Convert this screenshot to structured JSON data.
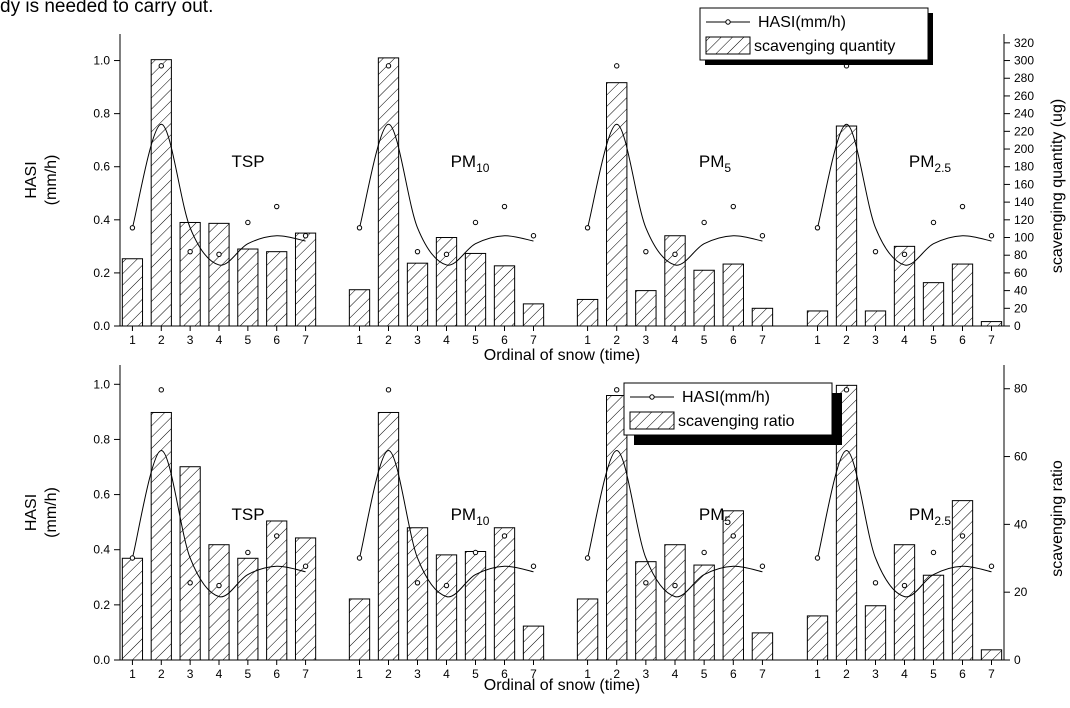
{
  "page_text": "dy is needed to carry out.",
  "chart_data": [
    {
      "type": "bar+line",
      "ylabel_left": [
        "HASI",
        "(mm/h)"
      ],
      "ylabel_right": "scavenging quantity (ug)",
      "xlabel": "Ordinal of snow (time)",
      "left_ylim": [
        0,
        1.1
      ],
      "left_ticks": [
        "0.0",
        "0.2",
        "0.4",
        "0.6",
        "0.8",
        "1.0"
      ],
      "right_ylim": [
        0,
        330
      ],
      "right_ticks": [
        "0",
        "20",
        "40",
        "60",
        "80",
        "100",
        "120",
        "140",
        "160",
        "180",
        "200",
        "220",
        "240",
        "260",
        "280",
        "300",
        "320"
      ],
      "categories": [
        "1",
        "2",
        "3",
        "4",
        "5",
        "6",
        "7"
      ],
      "legend": {
        "line": "HASI(mm/h)",
        "bar": "scavenging quantity"
      },
      "panels": [
        {
          "label": "TSP",
          "sub": "",
          "bar_values": [
            76,
            301,
            117,
            116,
            87,
            84,
            105
          ]
        },
        {
          "label": "PM",
          "sub": "10",
          "bar_values": [
            41,
            303,
            71,
            100,
            82,
            68,
            25
          ]
        },
        {
          "label": "PM",
          "sub": "5",
          "bar_values": [
            30,
            275,
            40,
            102,
            63,
            70,
            20
          ]
        },
        {
          "label": "PM",
          "sub": "2.5",
          "bar_values": [
            17,
            226,
            17,
            90,
            49,
            70,
            5
          ]
        }
      ],
      "hasi_points": [
        0.37,
        0.98,
        0.28,
        0.27,
        0.39,
        0.45,
        0.34
      ],
      "hasi_curve": [
        0.37,
        0.76,
        0.37,
        0.23,
        0.31,
        0.34,
        0.32
      ]
    },
    {
      "type": "bar+line",
      "ylabel_left": [
        "HASI",
        "(mm/h)"
      ],
      "ylabel_right": "scavenging ratio",
      "xlabel": "Ordinal of snow (time)",
      "left_ylim": [
        0,
        1.07
      ],
      "left_ticks": [
        "0.0",
        "0.2",
        "0.4",
        "0.6",
        "0.8",
        "1.0"
      ],
      "right_ylim": [
        0,
        87
      ],
      "right_ticks": [
        "0",
        "20",
        "40",
        "60",
        "80"
      ],
      "categories": [
        "1",
        "2",
        "3",
        "4",
        "5",
        "6",
        "7"
      ],
      "legend": {
        "line": "HASI(mm/h)",
        "bar": "scavenging ratio"
      },
      "panels": [
        {
          "label": "TSP",
          "sub": "",
          "bar_values": [
            30,
            73,
            57,
            34,
            30,
            41,
            36
          ]
        },
        {
          "label": "PM",
          "sub": "10",
          "bar_values": [
            18,
            73,
            39,
            31,
            32,
            39,
            10
          ]
        },
        {
          "label": "PM",
          "sub": "5",
          "bar_values": [
            18,
            78,
            29,
            34,
            28,
            44,
            8
          ]
        },
        {
          "label": "PM",
          "sub": "2.5",
          "bar_values": [
            13,
            81,
            16,
            34,
            25,
            47,
            3
          ]
        }
      ],
      "hasi_points": [
        0.37,
        0.98,
        0.28,
        0.27,
        0.39,
        0.45,
        0.34
      ],
      "hasi_curve": [
        0.37,
        0.76,
        0.37,
        0.23,
        0.31,
        0.34,
        0.32
      ]
    }
  ]
}
